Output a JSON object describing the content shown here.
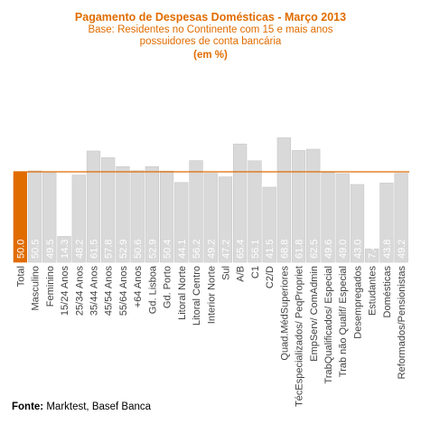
{
  "chart_data": {
    "type": "bar",
    "title": "Pagamento de Despesas Domésticas - Março 2013",
    "subtitle": "Base: Residentes no Continente com 15 e mais anos",
    "subtitle2": "possuidores de conta bancária",
    "unit": "(em %)",
    "categories": [
      "Total",
      "Masculino",
      "Feminino",
      "15/24 Anos",
      "25/34 Anos",
      "35/44 Anos",
      "45/54 Anos",
      "55/64 Anos",
      "+64 Anos",
      "Gd. Lisboa",
      "Gd. Porto",
      "Litoral Norte",
      "Litoral Centro",
      "Interior Norte",
      "Sul",
      "A/B",
      "C1",
      "C2/D",
      "Quad.MédSuperiores",
      "TécEspecializados/ PeqPropriet",
      "EmpServ/ ComAdmin",
      "TrabQualificados/ Especial",
      "Trab não Qualif/ Especial",
      "Desempregados",
      "Estudantes",
      "Domésticas",
      "Reformados/Pensionistas"
    ],
    "values": [
      50.0,
      50.5,
      49.5,
      14.3,
      48.2,
      61.5,
      57.8,
      52.9,
      50.6,
      52.9,
      50.4,
      44.1,
      56.2,
      49.2,
      47.2,
      65.4,
      56.1,
      41.5,
      68.8,
      61.8,
      62.5,
      49.6,
      49.0,
      43.0,
      7.4,
      43.8,
      49.2
    ],
    "value_labels": [
      "50.0",
      "50.5",
      "49.5",
      "14.3",
      "48.2",
      "61.5",
      "57.8",
      "52.9",
      "50.6",
      "52.9",
      "50.4",
      "44.1",
      "56.2",
      "49.2",
      "47.2",
      "65.4",
      "56.1",
      "41.5",
      "68.8",
      "61.8",
      "62.5",
      "49.6",
      "49.0",
      "43.0",
      "7.4",
      "43.8",
      "49.2"
    ],
    "reference_line": 50.0,
    "highlight_index": 0,
    "ylim": [
      0,
      75
    ],
    "colors": {
      "highlight": "#e06c00",
      "bar": "#d9d9d9",
      "bar_stroke": "#c8c8c8",
      "reference": "#e06c00",
      "label": "#ffffff",
      "axis_text": "#404040"
    }
  },
  "footer": {
    "source_label": "Fonte:",
    "source_text": "Marktest, Basef Banca"
  }
}
